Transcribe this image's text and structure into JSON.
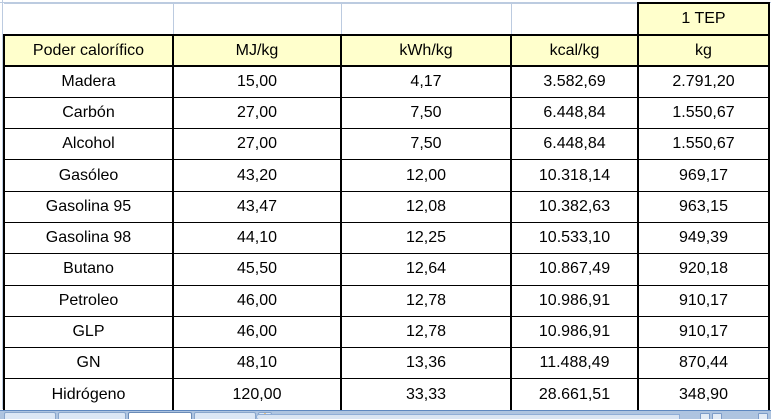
{
  "spreadsheet": {
    "merged_top_cell": "1 TEP",
    "columns": [
      "Poder calorífico",
      "MJ/kg",
      "kWh/kg",
      "kcal/kg",
      "kg"
    ],
    "rows": [
      [
        "Madera",
        "15,00",
        "4,17",
        "3.582,69",
        "2.791,20"
      ],
      [
        "Carbón",
        "27,00",
        "7,50",
        "6.448,84",
        "1.550,67"
      ],
      [
        "Alcohol",
        "27,00",
        "7,50",
        "6.448,84",
        "1.550,67"
      ],
      [
        "Gasóleo",
        "43,20",
        "12,00",
        "10.318,14",
        "969,17"
      ],
      [
        "Gasolina 95",
        "43,47",
        "12,08",
        "10.382,63",
        "963,15"
      ],
      [
        "Gasolina 98",
        "44,10",
        "12,25",
        "10.533,10",
        "949,39"
      ],
      [
        "Butano",
        "45,50",
        "12,64",
        "10.867,49",
        "920,18"
      ],
      [
        "Petroleo",
        "46,00",
        "12,78",
        "10.986,91",
        "910,17"
      ],
      [
        "GLP",
        "46,00",
        "12,78",
        "10.986,91",
        "910,17"
      ],
      [
        "GN",
        "48,10",
        "13,36",
        "11.488,49",
        "870,44"
      ],
      [
        "Hidrógeno",
        "120,00",
        "33,33",
        "28.661,51",
        "348,90"
      ]
    ],
    "number_format": "es-ES (miles con punto, decimales con coma)"
  },
  "tab_bar": {
    "visible_tab_count": 4,
    "insert_worksheet_icon": "✱"
  },
  "colors": {
    "header_fill": "#FFFFCC",
    "cell_border": "#000000",
    "gridline": "#BCCBE0",
    "tab_strip": "#AEC4E0"
  }
}
